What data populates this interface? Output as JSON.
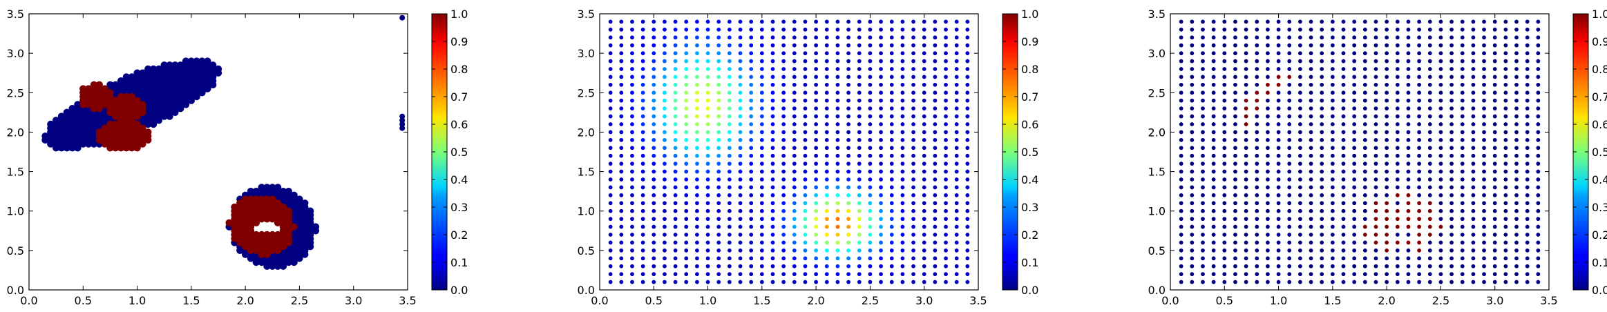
{
  "chart_data": [
    {
      "type": "scatter",
      "title": "",
      "xlabel": "",
      "ylabel": "",
      "xlim": [
        0.0,
        3.5
      ],
      "ylim": [
        0.0,
        3.5
      ],
      "xticks": [
        "0.0",
        "0.5",
        "1.0",
        "1.5",
        "2.0",
        "2.5",
        "3.0",
        "3.5"
      ],
      "yticks": [
        "0.0",
        "0.5",
        "1.0",
        "1.5",
        "2.0",
        "2.5",
        "3.0",
        "3.5"
      ],
      "grid": false,
      "colormap": "jet",
      "colorbar": {
        "range": [
          0.0,
          1.0
        ],
        "ticks": [
          "0.0",
          "0.1",
          "0.2",
          "0.3",
          "0.4",
          "0.5",
          "0.6",
          "0.7",
          "0.8",
          "0.9",
          "1.0"
        ]
      },
      "marker_spacing": 0.05,
      "regions": [
        {
          "shape": "ellipse",
          "center": [
            0.95,
            2.35
          ],
          "radius": [
            0.33,
            0.93
          ],
          "angle_deg": 32,
          "value": 0.0
        },
        {
          "shape": "blob",
          "points": [
            [
              0.62,
              2.45
            ],
            [
              0.9,
              2.3
            ],
            [
              0.8,
              1.95
            ],
            [
              0.95,
              1.95
            ]
          ],
          "radius": 0.16,
          "value": 1.0
        },
        {
          "shape": "ellipse",
          "center": [
            2.25,
            0.8
          ],
          "radius": [
            0.52,
            0.4
          ],
          "angle_deg": 8,
          "value": 0.0
        },
        {
          "shape": "ellipse",
          "center": [
            2.15,
            0.82
          ],
          "radius": [
            0.38,
            0.3
          ],
          "angle_deg": 8,
          "value": 1.0
        },
        {
          "shape": "hole",
          "center": [
            2.2,
            0.78
          ],
          "radius": [
            0.11,
            0.08
          ]
        }
      ],
      "extra_points": [
        [
          3.45,
          3.45
        ],
        [
          3.45,
          2.2
        ],
        [
          3.45,
          2.15
        ],
        [
          3.45,
          2.1
        ],
        [
          3.45,
          2.05
        ]
      ]
    },
    {
      "type": "scatter",
      "title": "",
      "xlabel": "",
      "ylabel": "",
      "xlim": [
        0.0,
        3.5
      ],
      "ylim": [
        0.0,
        3.5
      ],
      "xticks": [
        "0.0",
        "0.5",
        "1.0",
        "1.5",
        "2.0",
        "2.5",
        "3.0",
        "3.5"
      ],
      "yticks": [
        "0.0",
        "0.5",
        "1.0",
        "1.5",
        "2.0",
        "2.5",
        "3.0",
        "3.5"
      ],
      "grid": false,
      "colormap": "jet",
      "colorbar": {
        "range": [
          0.0,
          1.0
        ],
        "ticks": [
          "0.0",
          "0.1",
          "0.2",
          "0.3",
          "0.4",
          "0.5",
          "0.6",
          "0.7",
          "0.8",
          "0.9",
          "1.0"
        ]
      },
      "grid_points": {
        "start": 0.1,
        "stop": 3.4,
        "step": 0.1
      },
      "field": [
        {
          "center": [
            0.95,
            2.35
          ],
          "sigma": [
            0.45,
            0.7
          ],
          "peak": 0.55
        },
        {
          "center": [
            2.2,
            0.85
          ],
          "sigma": [
            0.38,
            0.4
          ],
          "peak": 0.72
        }
      ]
    },
    {
      "type": "scatter",
      "title": "",
      "xlabel": "",
      "ylabel": "",
      "xlim": [
        0.0,
        3.5
      ],
      "ylim": [
        0.0,
        3.5
      ],
      "xticks": [
        "0.0",
        "0.5",
        "1.0",
        "1.5",
        "2.0",
        "2.5",
        "3.0",
        "3.5"
      ],
      "yticks": [
        "0.0",
        "0.5",
        "1.0",
        "1.5",
        "2.0",
        "2.5",
        "3.0",
        "3.5"
      ],
      "grid": false,
      "colormap": "jet",
      "colorbar": {
        "range": [
          0.0,
          1.0
        ],
        "ticks": [
          "0.0",
          "0.1",
          "0.2",
          "0.3",
          "0.4",
          "0.5",
          "0.6",
          "0.7",
          "0.8",
          "0.9",
          "1.0"
        ]
      },
      "grid_points": {
        "start": 0.1,
        "stop": 3.4,
        "step": 0.1
      },
      "high_points": [
        [
          1.0,
          2.7
        ],
        [
          1.1,
          2.7
        ],
        [
          0.9,
          2.6
        ],
        [
          1.0,
          2.6
        ],
        [
          0.8,
          2.5
        ],
        [
          0.9,
          2.5
        ],
        [
          0.7,
          2.4
        ],
        [
          0.8,
          2.4
        ],
        [
          0.7,
          2.3
        ],
        [
          0.8,
          2.3
        ],
        [
          0.7,
          2.2
        ],
        [
          0.7,
          2.1
        ],
        [
          2.1,
          1.2
        ],
        [
          2.2,
          1.2
        ],
        [
          1.9,
          1.1
        ],
        [
          2.0,
          1.1
        ],
        [
          2.2,
          1.1
        ],
        [
          2.3,
          1.1
        ],
        [
          2.4,
          1.1
        ],
        [
          1.9,
          1.0
        ],
        [
          2.0,
          1.0
        ],
        [
          2.1,
          1.0
        ],
        [
          2.2,
          1.0
        ],
        [
          2.3,
          1.0
        ],
        [
          2.4,
          1.0
        ],
        [
          1.9,
          0.9
        ],
        [
          2.0,
          0.9
        ],
        [
          2.1,
          0.9
        ],
        [
          2.2,
          0.9
        ],
        [
          2.3,
          0.9
        ],
        [
          2.4,
          0.9
        ],
        [
          1.8,
          0.8
        ],
        [
          1.9,
          0.8
        ],
        [
          2.0,
          0.8
        ],
        [
          2.1,
          0.8
        ],
        [
          2.2,
          0.8
        ],
        [
          2.3,
          0.8
        ],
        [
          2.4,
          0.8
        ],
        [
          2.5,
          0.8
        ],
        [
          1.8,
          0.7
        ],
        [
          1.9,
          0.7
        ],
        [
          2.0,
          0.7
        ],
        [
          2.3,
          0.7
        ],
        [
          2.4,
          0.7
        ],
        [
          1.9,
          0.6
        ],
        [
          2.0,
          0.6
        ],
        [
          2.1,
          0.6
        ],
        [
          2.2,
          0.6
        ],
        [
          2.3,
          0.6
        ],
        [
          2.0,
          0.5
        ],
        [
          2.3,
          0.5
        ]
      ]
    }
  ]
}
